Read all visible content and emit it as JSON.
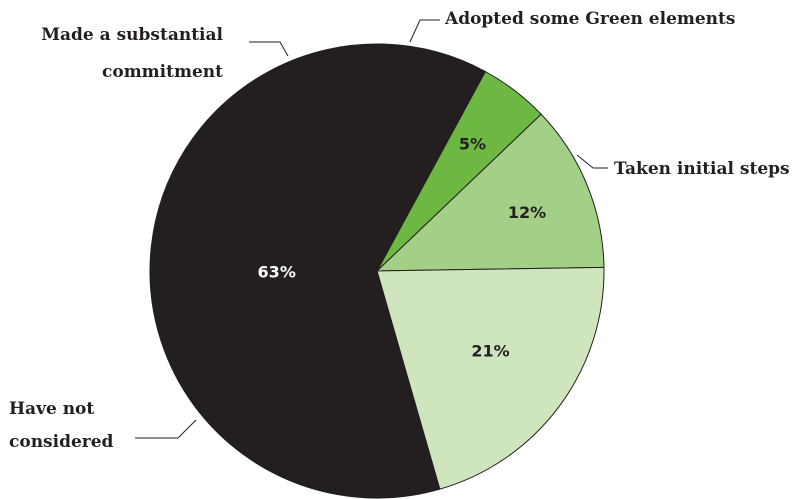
{
  "chart_data": {
    "type": "pie",
    "title": "",
    "slices": [
      {
        "label": "Made a substantial commitment",
        "label_lines": [
          "Made a substantial",
          "commitment"
        ],
        "value": 5,
        "display": "5%",
        "color": "#6db843",
        "text_color": "#231f20"
      },
      {
        "label": "Adopted some Green elements",
        "label_lines": [
          "Adopted some Green elements"
        ],
        "value": 12,
        "display": "12%",
        "color": "#a3cf86",
        "text_color": "#231f20"
      },
      {
        "label": "Taken initial steps",
        "label_lines": [
          "Taken initial steps"
        ],
        "value": 21,
        "display": "21%",
        "color": "#cfe5bd",
        "text_color": "#231f20"
      },
      {
        "label": "Have not considered",
        "label_lines": [
          "Have not",
          "considered"
        ],
        "value": 63,
        "display": "63%",
        "color": "#231f20",
        "text_color": "#ffffff"
      }
    ]
  }
}
